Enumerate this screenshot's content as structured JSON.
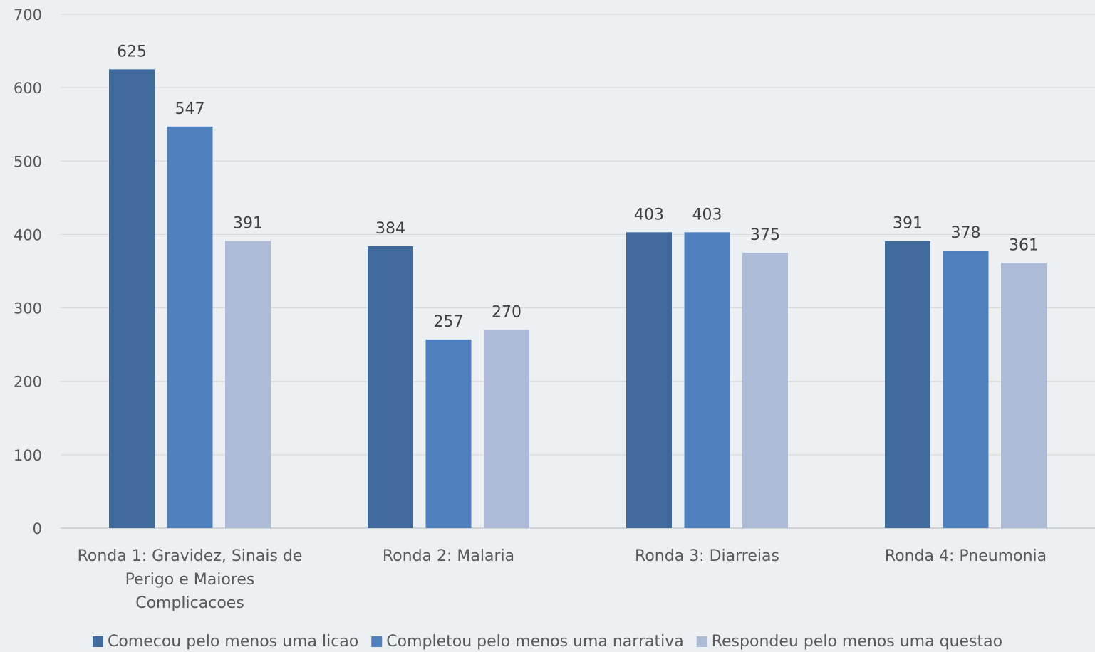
{
  "chart_data": {
    "type": "bar",
    "categories": [
      [
        "Ronda 1: Gravidez, Sinais de",
        "Perigo e Maiores",
        "Complicacoes"
      ],
      [
        "Ronda 2: Malaria"
      ],
      [
        "Ronda 3: Diarreias"
      ],
      [
        "Ronda 4: Pneumonia"
      ]
    ],
    "series": [
      {
        "name": "Comecou pelo menos uma licao",
        "color": "#406a9b",
        "values": [
          625,
          384,
          403,
          391
        ]
      },
      {
        "name": "Completou pelo menos uma narrativa",
        "color": "#4f80bd",
        "values": [
          547,
          257,
          403,
          378
        ]
      },
      {
        "name": "Respondeu pelo menos uma questao",
        "color": "#adbbd9",
        "values": [
          391,
          270,
          375,
          361
        ]
      }
    ],
    "y_ticks": [
      0,
      100,
      200,
      300,
      400,
      500,
      600,
      700
    ],
    "ylim": [
      0,
      700
    ],
    "grid": true,
    "legend_position": "bottom",
    "title": "",
    "xlabel": "",
    "ylabel": ""
  }
}
